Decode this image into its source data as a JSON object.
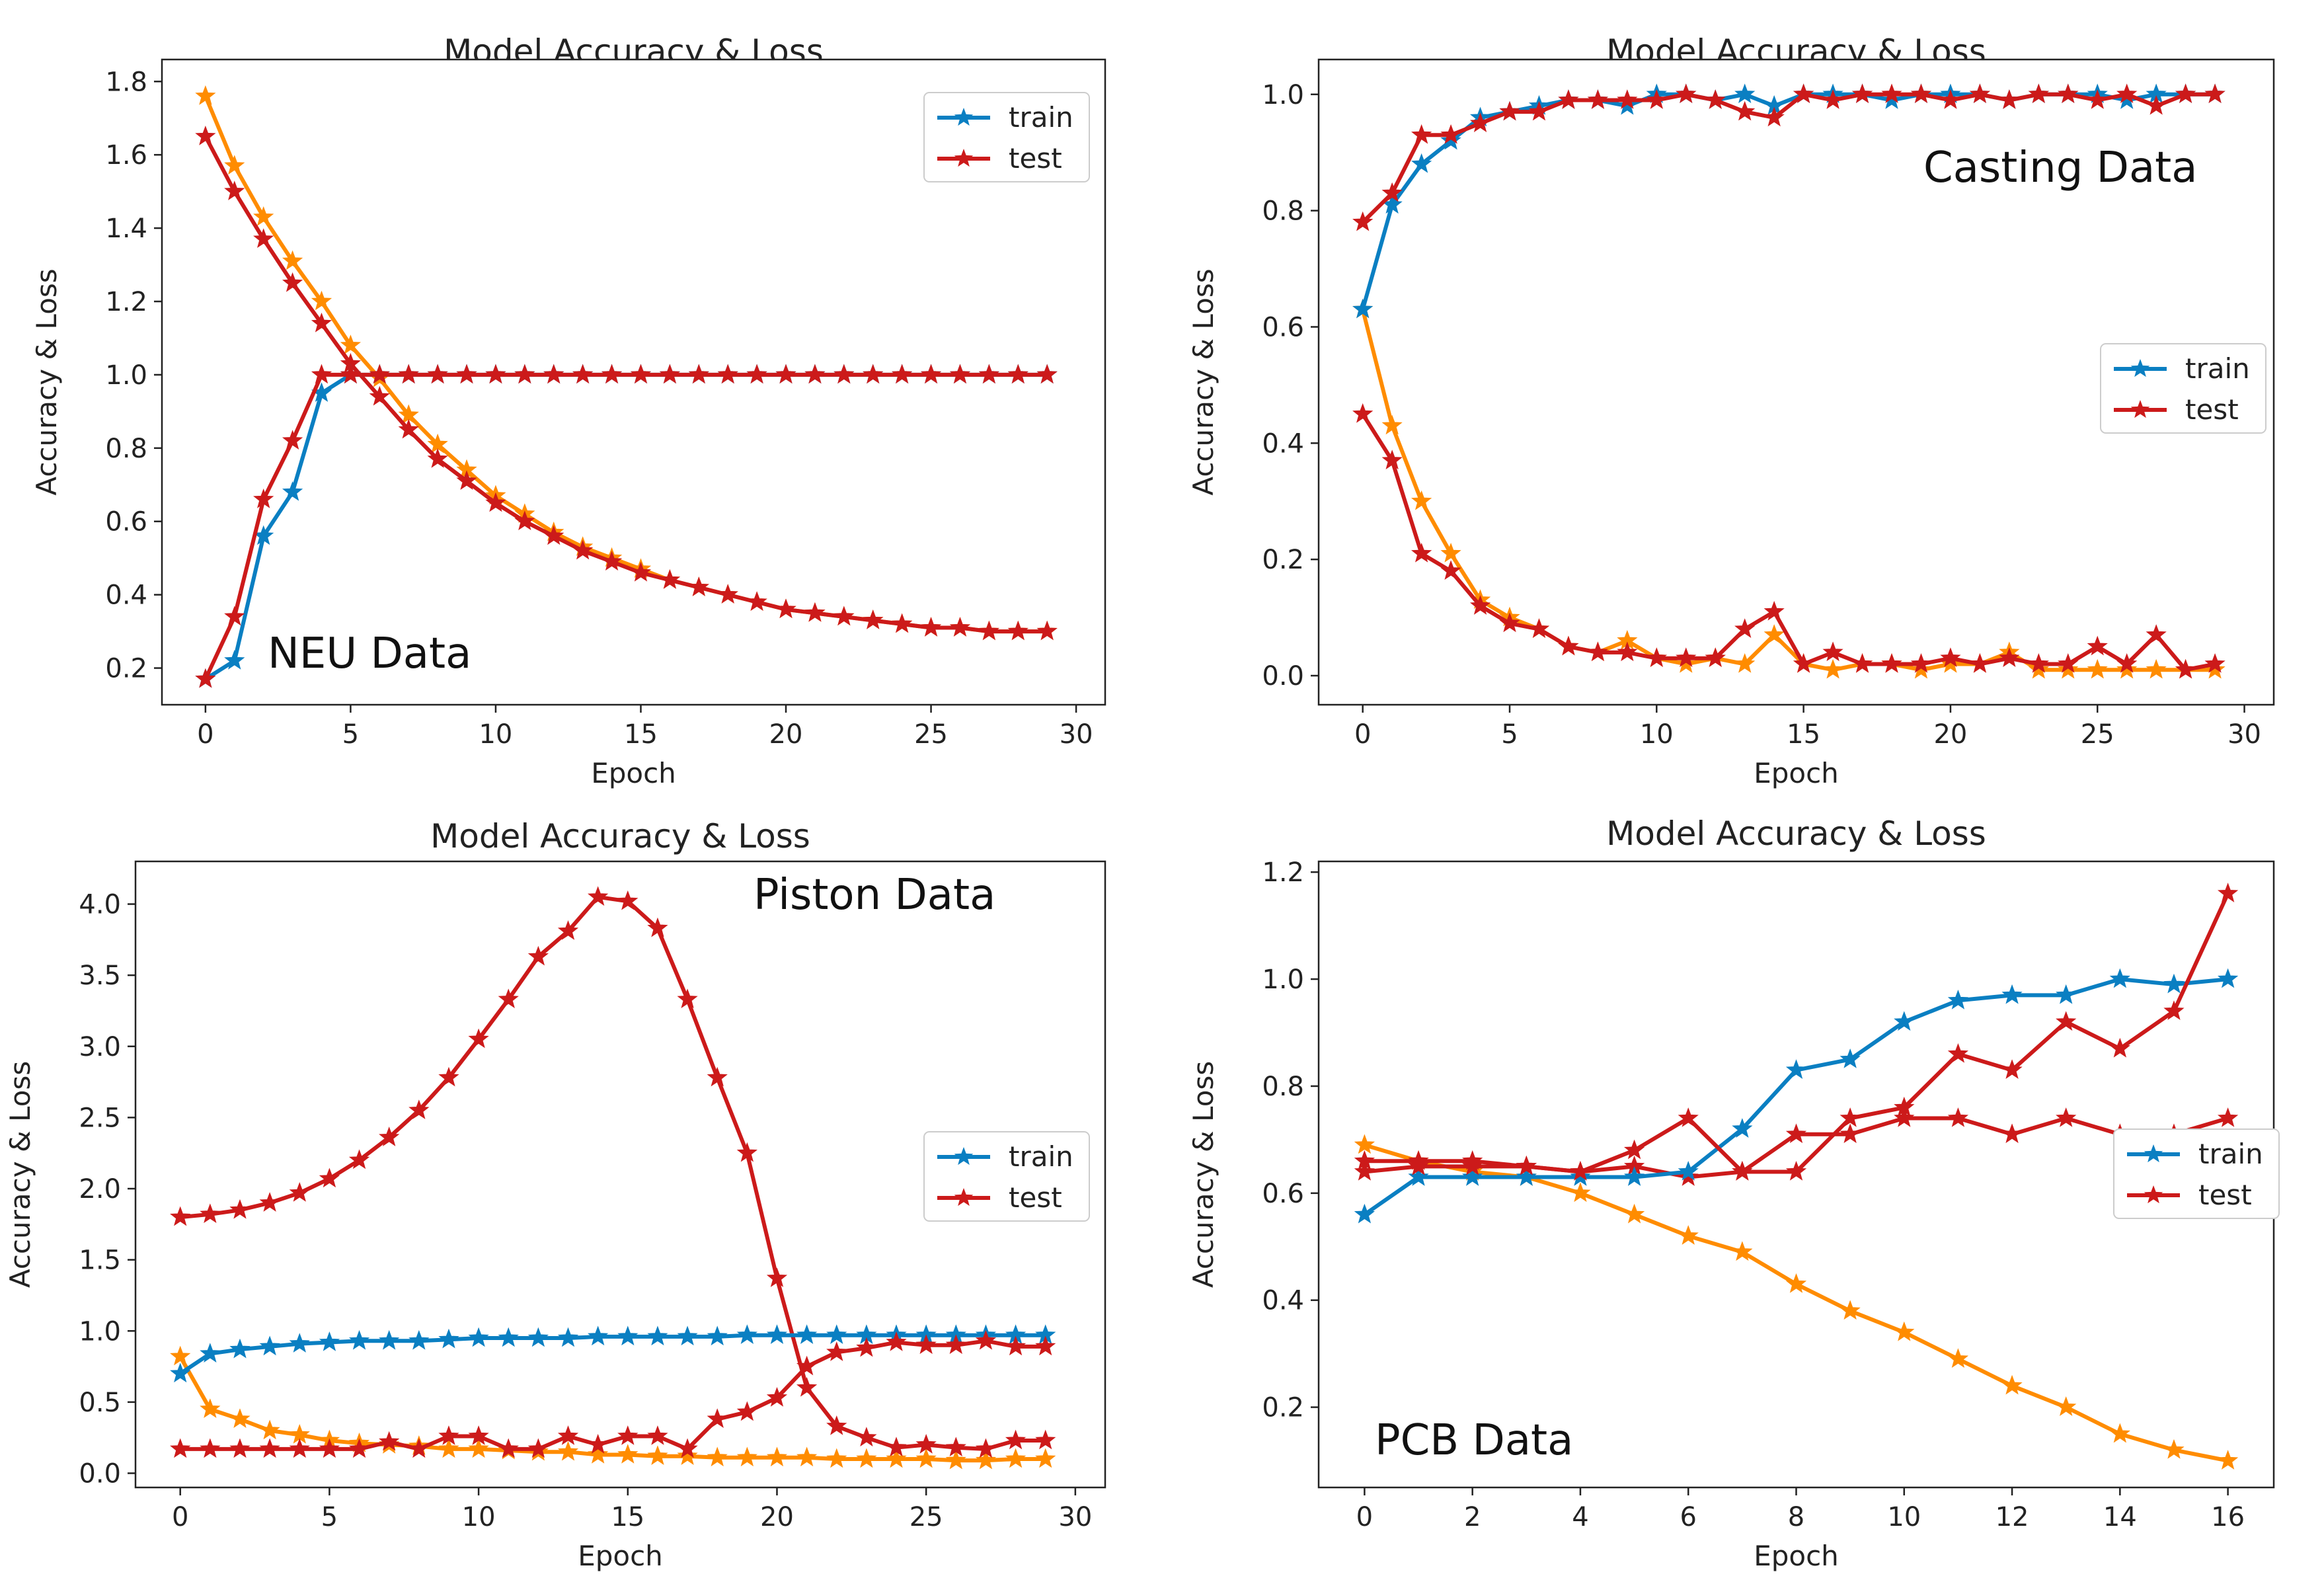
{
  "colors": {
    "train": "#0a7fc2",
    "test": "#cc1a1a",
    "loss": "#ff8c00"
  },
  "chart_data": [
    {
      "type": "line",
      "title": "Model Accuracy & Loss",
      "xlabel": "Epoch",
      "ylabel": "Accuracy & Loss",
      "annotation": "NEU Data",
      "legend": "top-right",
      "legend_entries": [
        "train",
        "test"
      ],
      "xlim": [
        -1.5,
        31
      ],
      "ylim": [
        0.1,
        1.86
      ],
      "xticks": [
        0,
        5,
        10,
        15,
        20,
        25,
        30
      ],
      "xtick_labels": [
        "0",
        "5",
        "10",
        "15",
        "20",
        "25",
        "30"
      ],
      "yticks": [
        0.2,
        0.4,
        0.6,
        0.8,
        1.0,
        1.2,
        1.4,
        1.6,
        1.8
      ],
      "ytick_labels": [
        "0.2",
        "0.4",
        "0.6",
        "0.8",
        "1.0",
        "1.2",
        "1.4",
        "1.6",
        "1.8"
      ],
      "series": [
        {
          "role": "loss",
          "x": [
            0,
            1,
            2,
            3,
            4,
            5,
            6,
            7,
            8,
            9,
            10,
            11,
            12,
            13,
            14,
            15,
            16,
            17,
            18,
            19,
            20,
            21,
            22,
            23,
            24,
            25,
            26,
            27,
            28,
            29
          ],
          "y": [
            1.76,
            1.57,
            1.43,
            1.31,
            1.2,
            1.08,
            0.99,
            0.89,
            0.81,
            0.74,
            0.67,
            0.62,
            0.57,
            0.53,
            0.5,
            0.47,
            0.44,
            0.42,
            0.4,
            0.38,
            0.36,
            0.35,
            0.34,
            0.33,
            0.32,
            0.31,
            0.31,
            0.3,
            0.3,
            0.3
          ]
        },
        {
          "role": "test",
          "x": [
            0,
            1,
            2,
            3,
            4,
            5,
            6,
            7,
            8,
            9,
            10,
            11,
            12,
            13,
            14,
            15,
            16,
            17,
            18,
            19,
            20,
            21,
            22,
            23,
            24,
            25,
            26,
            27,
            28,
            29
          ],
          "y": [
            1.65,
            1.5,
            1.37,
            1.25,
            1.14,
            1.03,
            0.94,
            0.85,
            0.77,
            0.71,
            0.65,
            0.6,
            0.56,
            0.52,
            0.49,
            0.46,
            0.44,
            0.42,
            0.4,
            0.38,
            0.36,
            0.35,
            0.34,
            0.33,
            0.32,
            0.31,
            0.31,
            0.3,
            0.3,
            0.3
          ]
        },
        {
          "role": "train",
          "name": "train",
          "x": [
            0,
            1,
            2,
            3,
            4,
            5,
            6,
            7,
            8,
            9,
            10,
            11,
            12,
            13,
            14,
            15,
            16,
            17,
            18,
            19,
            20,
            21,
            22,
            23,
            24,
            25,
            26,
            27,
            28,
            29
          ],
          "y": [
            0.17,
            0.22,
            0.56,
            0.68,
            0.95,
            1,
            1,
            1,
            1,
            1,
            1,
            1,
            1,
            1,
            1,
            1,
            1,
            1,
            1,
            1,
            1,
            1,
            1,
            1,
            1,
            1,
            1,
            1,
            1,
            1
          ]
        },
        {
          "role": "test",
          "name": "test",
          "x": [
            0,
            1,
            2,
            3,
            4,
            5,
            6,
            7,
            8,
            9,
            10,
            11,
            12,
            13,
            14,
            15,
            16,
            17,
            18,
            19,
            20,
            21,
            22,
            23,
            24,
            25,
            26,
            27,
            28,
            29
          ],
          "y": [
            0.17,
            0.34,
            0.66,
            0.82,
            1,
            1,
            1,
            1,
            1,
            1,
            1,
            1,
            1,
            1,
            1,
            1,
            1,
            1,
            1,
            1,
            1,
            1,
            1,
            1,
            1,
            1,
            1,
            1,
            1,
            1
          ]
        }
      ]
    },
    {
      "type": "line",
      "title": "Model Accuracy & Loss",
      "xlabel": "Epoch",
      "ylabel": "Accuracy & Loss",
      "annotation": "Casting Data",
      "legend": "center-right",
      "legend_entries": [
        "train",
        "test"
      ],
      "xlim": [
        -1.5,
        31
      ],
      "ylim": [
        -0.05,
        1.06
      ],
      "xticks": [
        0,
        5,
        10,
        15,
        20,
        25,
        30
      ],
      "xtick_labels": [
        "0",
        "5",
        "10",
        "15",
        "20",
        "25",
        "30"
      ],
      "yticks": [
        0.0,
        0.2,
        0.4,
        0.6,
        0.8,
        1.0
      ],
      "ytick_labels": [
        "0.0",
        "0.2",
        "0.4",
        "0.6",
        "0.8",
        "1.0"
      ],
      "series": [
        {
          "role": "loss",
          "x": [
            0,
            1,
            2,
            3,
            4,
            5,
            6,
            7,
            8,
            9,
            10,
            11,
            12,
            13,
            14,
            15,
            16,
            17,
            18,
            19,
            20,
            21,
            22,
            23,
            24,
            25,
            26,
            27,
            28,
            29
          ],
          "y": [
            0.63,
            0.43,
            0.3,
            0.21,
            0.13,
            0.1,
            0.08,
            0.05,
            0.04,
            0.06,
            0.03,
            0.02,
            0.03,
            0.02,
            0.07,
            0.02,
            0.01,
            0.02,
            0.02,
            0.01,
            0.02,
            0.02,
            0.04,
            0.01,
            0.01,
            0.01,
            0.01,
            0.01,
            0.01,
            0.01
          ]
        },
        {
          "role": "test",
          "x": [
            0,
            1,
            2,
            3,
            4,
            5,
            6,
            7,
            8,
            9,
            10,
            11,
            12,
            13,
            14,
            15,
            16,
            17,
            18,
            19,
            20,
            21,
            22,
            23,
            24,
            25,
            26,
            27,
            28,
            29
          ],
          "y": [
            0.45,
            0.37,
            0.21,
            0.18,
            0.12,
            0.09,
            0.08,
            0.05,
            0.04,
            0.04,
            0.03,
            0.03,
            0.03,
            0.08,
            0.11,
            0.02,
            0.04,
            0.02,
            0.02,
            0.02,
            0.03,
            0.02,
            0.03,
            0.02,
            0.02,
            0.05,
            0.02,
            0.07,
            0.01,
            0.02
          ]
        },
        {
          "role": "train",
          "name": "train",
          "x": [
            0,
            1,
            2,
            3,
            4,
            5,
            6,
            7,
            8,
            9,
            10,
            11,
            12,
            13,
            14,
            15,
            16,
            17,
            18,
            19,
            20,
            21,
            22,
            23,
            24,
            25,
            26,
            27,
            28,
            29
          ],
          "y": [
            0.63,
            0.81,
            0.88,
            0.92,
            0.96,
            0.97,
            0.98,
            0.99,
            0.99,
            0.98,
            1,
            1,
            0.99,
            1,
            0.98,
            1,
            1,
            1,
            0.99,
            1,
            1,
            1,
            0.99,
            1,
            1,
            1,
            0.99,
            1,
            1,
            1
          ]
        },
        {
          "role": "test",
          "name": "test",
          "x": [
            0,
            1,
            2,
            3,
            4,
            5,
            6,
            7,
            8,
            9,
            10,
            11,
            12,
            13,
            14,
            15,
            16,
            17,
            18,
            19,
            20,
            21,
            22,
            23,
            24,
            25,
            26,
            27,
            28,
            29
          ],
          "y": [
            0.78,
            0.83,
            0.93,
            0.93,
            0.95,
            0.97,
            0.97,
            0.99,
            0.99,
            0.99,
            0.99,
            1,
            0.99,
            0.97,
            0.96,
            1,
            0.99,
            1,
            1,
            1,
            0.99,
            1,
            0.99,
            1,
            1,
            0.99,
            1,
            0.98,
            1,
            1
          ]
        }
      ]
    },
    {
      "type": "line",
      "title": "Model Accuracy & Loss",
      "xlabel": "Epoch",
      "ylabel": "Accuracy & Loss",
      "annotation": "Piston Data",
      "legend": "center-right",
      "legend_entries": [
        "train",
        "test"
      ],
      "xlim": [
        -1.5,
        31
      ],
      "ylim": [
        -0.1,
        4.3
      ],
      "xticks": [
        0,
        5,
        10,
        15,
        20,
        25,
        30
      ],
      "xtick_labels": [
        "0",
        "5",
        "10",
        "15",
        "20",
        "25",
        "30"
      ],
      "yticks": [
        0.0,
        0.5,
        1.0,
        1.5,
        2.0,
        2.5,
        3.0,
        3.5,
        4.0
      ],
      "ytick_labels": [
        "0.0",
        "0.5",
        "1.0",
        "1.5",
        "2.0",
        "2.5",
        "3.0",
        "3.5",
        "4.0"
      ],
      "series": [
        {
          "role": "loss",
          "x": [
            0,
            1,
            2,
            3,
            4,
            5,
            6,
            7,
            8,
            9,
            10,
            11,
            12,
            13,
            14,
            15,
            16,
            17,
            18,
            19,
            20,
            21,
            22,
            23,
            24,
            25,
            26,
            27,
            28,
            29
          ],
          "y": [
            0.82,
            0.45,
            0.38,
            0.3,
            0.27,
            0.23,
            0.21,
            0.2,
            0.19,
            0.17,
            0.17,
            0.16,
            0.15,
            0.15,
            0.13,
            0.13,
            0.12,
            0.12,
            0.11,
            0.11,
            0.11,
            0.11,
            0.1,
            0.1,
            0.1,
            0.1,
            0.09,
            0.09,
            0.1,
            0.1
          ]
        },
        {
          "role": "test",
          "x": [
            0,
            1,
            2,
            3,
            4,
            5,
            6,
            7,
            8,
            9,
            10,
            11,
            12,
            13,
            14,
            15,
            16,
            17,
            18,
            19,
            20,
            21,
            22,
            23,
            24,
            25,
            26,
            27,
            28,
            29
          ],
          "y": [
            1.8,
            1.82,
            1.85,
            1.9,
            1.97,
            2.07,
            2.2,
            2.36,
            2.55,
            2.78,
            3.05,
            3.33,
            3.63,
            3.81,
            4.05,
            4.02,
            3.83,
            3.33,
            2.78,
            2.25,
            1.37,
            0.6,
            0.33,
            0.25,
            0.18,
            0.2,
            0.18,
            0.17,
            0.23,
            0.23
          ]
        },
        {
          "role": "train",
          "name": "train",
          "x": [
            0,
            1,
            2,
            3,
            4,
            5,
            6,
            7,
            8,
            9,
            10,
            11,
            12,
            13,
            14,
            15,
            16,
            17,
            18,
            19,
            20,
            21,
            22,
            23,
            24,
            25,
            26,
            27,
            28,
            29
          ],
          "y": [
            0.7,
            0.84,
            0.87,
            0.89,
            0.91,
            0.92,
            0.93,
            0.93,
            0.93,
            0.94,
            0.95,
            0.95,
            0.95,
            0.95,
            0.96,
            0.96,
            0.96,
            0.96,
            0.96,
            0.97,
            0.97,
            0.97,
            0.97,
            0.97,
            0.97,
            0.97,
            0.97,
            0.97,
            0.97,
            0.97
          ]
        },
        {
          "role": "test",
          "name": "test",
          "x": [
            0,
            1,
            2,
            3,
            4,
            5,
            6,
            7,
            8,
            9,
            10,
            11,
            12,
            13,
            14,
            15,
            16,
            17,
            18,
            19,
            20,
            21,
            22,
            23,
            24,
            25,
            26,
            27,
            28,
            29
          ],
          "y": [
            0.17,
            0.17,
            0.17,
            0.17,
            0.17,
            0.17,
            0.17,
            0.22,
            0.17,
            0.26,
            0.26,
            0.17,
            0.17,
            0.26,
            0.2,
            0.26,
            0.26,
            0.17,
            0.38,
            0.43,
            0.53,
            0.75,
            0.85,
            0.88,
            0.92,
            0.9,
            0.9,
            0.93,
            0.89,
            0.89
          ]
        }
      ]
    },
    {
      "type": "line",
      "title": "Model Accuracy & Loss",
      "xlabel": "Epoch",
      "ylabel": "Accuracy & Loss",
      "annotation": "PCB Data",
      "legend": "center-right",
      "legend_entries": [
        "train",
        "test"
      ],
      "xlim": [
        -0.85,
        16.85
      ],
      "ylim": [
        0.05,
        1.22
      ],
      "xticks": [
        0,
        2,
        4,
        6,
        8,
        10,
        12,
        14,
        16
      ],
      "xtick_labels": [
        "0",
        "2",
        "4",
        "6",
        "8",
        "10",
        "12",
        "14",
        "16"
      ],
      "yticks": [
        0.2,
        0.4,
        0.6,
        0.8,
        1.0,
        1.2
      ],
      "ytick_labels": [
        "0.2",
        "0.4",
        "0.6",
        "0.8",
        "1.0",
        "1.2"
      ],
      "series": [
        {
          "role": "loss",
          "x": [
            0,
            1,
            2,
            3,
            4,
            5,
            6,
            7,
            8,
            9,
            10,
            11,
            12,
            13,
            14,
            15,
            16
          ],
          "y": [
            0.69,
            0.66,
            0.64,
            0.63,
            0.6,
            0.56,
            0.52,
            0.49,
            0.43,
            0.38,
            0.34,
            0.29,
            0.24,
            0.2,
            0.15,
            0.12,
            0.1
          ]
        },
        {
          "role": "test",
          "x": [
            0,
            1,
            2,
            3,
            4,
            5,
            6,
            7,
            8,
            9,
            10,
            11,
            12,
            13,
            14,
            15,
            16
          ],
          "y": [
            0.66,
            0.66,
            0.66,
            0.65,
            0.64,
            0.65,
            0.63,
            0.64,
            0.71,
            0.71,
            0.74,
            0.74,
            0.71,
            0.74,
            0.71,
            0.71,
            0.74
          ]
        },
        {
          "role": "train",
          "name": "train",
          "x": [
            0,
            1,
            2,
            3,
            4,
            5,
            6,
            7,
            8,
            9,
            10,
            11,
            12,
            13,
            14,
            15,
            16
          ],
          "y": [
            0.56,
            0.63,
            0.63,
            0.63,
            0.63,
            0.63,
            0.64,
            0.72,
            0.83,
            0.85,
            0.92,
            0.96,
            0.97,
            0.97,
            1.0,
            0.99,
            1.0
          ]
        },
        {
          "role": "test",
          "name": "test",
          "x": [
            0,
            1,
            2,
            3,
            4,
            5,
            6,
            7,
            8,
            9,
            10,
            11,
            12,
            13,
            14,
            15,
            16
          ],
          "y": [
            0.64,
            0.65,
            0.65,
            0.65,
            0.64,
            0.68,
            0.74,
            0.64,
            0.64,
            0.74,
            0.76,
            0.86,
            0.83,
            0.92,
            0.87,
            0.94,
            1.16
          ]
        }
      ]
    }
  ]
}
